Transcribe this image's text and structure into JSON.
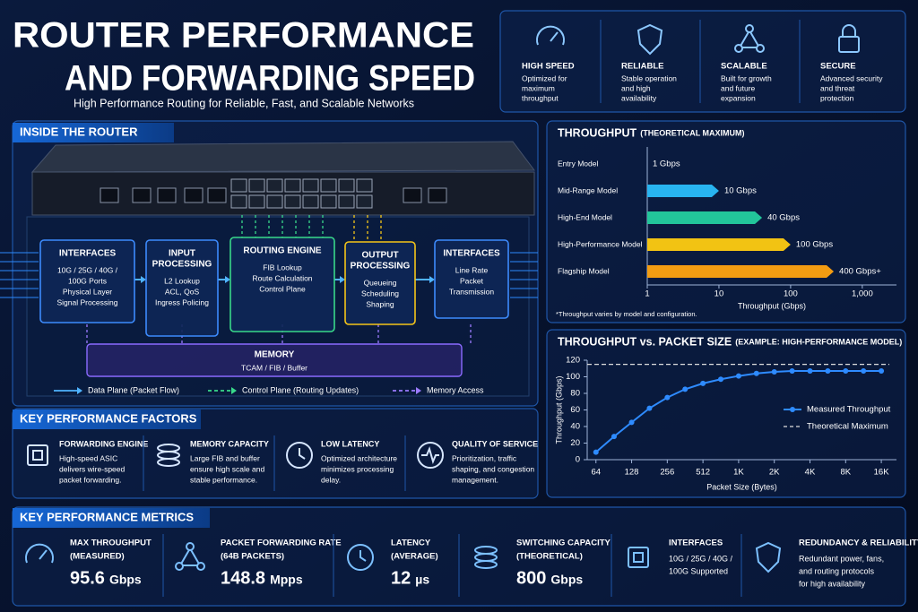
{
  "header": {
    "title_line1": "ROUTER PERFORMANCE",
    "title_line2": "AND FORWARDING SPEED",
    "subtitle": "High Performance Routing for Reliable, Fast, and Scalable Networks"
  },
  "features": [
    {
      "title": "HIGH SPEED",
      "lines": [
        "Optimized for",
        "maximum",
        "throughput"
      ]
    },
    {
      "title": "RELIABLE",
      "lines": [
        "Stable operation",
        "and high",
        "availability"
      ]
    },
    {
      "title": "SCALABLE",
      "lines": [
        "Built for growth",
        "and future",
        "expansion"
      ]
    },
    {
      "title": "SECURE",
      "lines": [
        "Advanced security",
        "and threat",
        "protection"
      ]
    }
  ],
  "router": {
    "title": "INSIDE THE ROUTER",
    "blocks": [
      {
        "title": [
          "INTERFACES"
        ],
        "lines": [
          "10G / 25G / 40G /",
          "100G Ports",
          "Physical Layer",
          "Signal Processing"
        ]
      },
      {
        "title": [
          "INPUT",
          "PROCESSING"
        ],
        "lines": [
          "L2 Lookup",
          "ACL, QoS",
          "Ingress Policing"
        ]
      },
      {
        "title": [
          "ROUTING ENGINE"
        ],
        "lines": [
          "FIB Lookup",
          "Route Calculation",
          "Control Plane"
        ]
      },
      {
        "title": [
          "OUTPUT",
          "PROCESSING"
        ],
        "lines": [
          "Queueing",
          "Scheduling",
          "Shaping"
        ]
      },
      {
        "title": [
          "INTERFACES"
        ],
        "lines": [
          "Line Rate",
          "Packet",
          "Transmission"
        ]
      }
    ],
    "memory": {
      "title": "MEMORY",
      "text": "TCAM / FIB / Buffer"
    },
    "legend": [
      "Data Plane (Packet Flow)",
      "Control Plane (Routing Updates)",
      "Memory Access"
    ]
  },
  "factors": {
    "title": "KEY PERFORMANCE FACTORS",
    "items": [
      {
        "title": "FORWARDING ENGINE",
        "lines": [
          "High-speed ASIC",
          "delivers wire-speed",
          "packet forwarding."
        ]
      },
      {
        "title": "MEMORY CAPACITY",
        "lines": [
          "Large FIB and buffer",
          "ensure high scale and",
          "stable performance."
        ]
      },
      {
        "title": "LOW LATENCY",
        "lines": [
          "Optimized architecture",
          "minimizes processing",
          "delay."
        ]
      },
      {
        "title": "QUALITY OF SERVICE",
        "lines": [
          "Prioritization, traffic",
          "shaping, and congestion",
          "management."
        ]
      }
    ]
  },
  "metrics": {
    "title": "KEY PERFORMANCE METRICS",
    "items": [
      {
        "label": "MAX THROUGHPUT",
        "sub": "(MEASURED)",
        "value": 95.6,
        "unit": "Gbps"
      },
      {
        "label": "PACKET FORWARDING RATE",
        "sub": "(64B PACKETS)",
        "value": 148.8,
        "unit": "Mpps"
      },
      {
        "label": "LATENCY",
        "sub": "(AVERAGE)",
        "value": 12,
        "unit": "µs"
      },
      {
        "label": "SWITCHING CAPACITY",
        "sub": "(THEORETICAL)",
        "value": 800,
        "unit": "Gbps"
      },
      {
        "label": "INTERFACES",
        "lines": [
          "10G / 25G / 40G /",
          "100G Supported"
        ]
      },
      {
        "label": "REDUNDANCY & RELIABILITY",
        "lines": [
          "Redundant power, fans,",
          "and routing protocols",
          "for high availability"
        ]
      }
    ]
  },
  "chart_data": [
    {
      "type": "bar",
      "orientation": "horizontal",
      "title": "THROUGHPUT",
      "subtitle": "(THEORETICAL MAXIMUM)",
      "categories": [
        "Entry Model",
        "Mid-Range Model",
        "High-End Model",
        "High-Performance Model",
        "Flagship Model"
      ],
      "values": [
        1,
        10,
        40,
        100,
        400
      ],
      "value_labels": [
        "1 Gbps",
        "10 Gbps",
        "40 Gbps",
        "100 Gbps",
        "400 Gbps+"
      ],
      "colors": [
        "#1e7fe0",
        "#28b4f0",
        "#22c59a",
        "#f2c313",
        "#f39c12"
      ],
      "xscale": "log",
      "xlim": [
        1,
        3000
      ],
      "xticks": [
        1,
        10,
        100,
        {
          "value": 1000,
          "label": "1,000"
        }
      ],
      "xlabel": "Throughput (Gbps)",
      "note": "*Throughput varies by model and configuration.",
      "grid": false
    },
    {
      "type": "line",
      "title": "THROUGHPUT vs. PACKET SIZE",
      "subtitle": "(EXAMPLE: HIGH-PERFORMANCE MODEL)",
      "x": [
        64,
        91,
        128,
        181,
        256,
        362,
        512,
        724,
        1024,
        1448,
        2048,
        2896,
        4096,
        5793,
        8192,
        11585,
        16384
      ],
      "series": [
        {
          "name": "Measured Throughput",
          "color": "#2e8bff",
          "values": [
            9,
            28,
            45,
            62,
            75,
            85,
            92,
            97,
            101,
            104,
            106,
            107,
            107,
            107,
            107,
            107,
            107
          ]
        }
      ],
      "hline": {
        "name": "Theoretical Maximum",
        "value": 115,
        "color": "#dddddd"
      },
      "xscale": "log",
      "xlim": [
        54,
        22000
      ],
      "xticks": [
        64,
        128,
        256,
        512,
        {
          "value": 1024,
          "label": "1K"
        },
        {
          "value": 2048,
          "label": "2K"
        },
        {
          "value": 4096,
          "label": "4K"
        },
        {
          "value": 8192,
          "label": "8K"
        },
        {
          "value": 16384,
          "label": "16K"
        }
      ],
      "ylim": [
        0,
        120
      ],
      "yticks": [
        0,
        20,
        40,
        60,
        80,
        100,
        120
      ],
      "xlabel": "Packet Size (Bytes)",
      "ylabel": "Throughput (Gbps)",
      "legend": "right",
      "grid": false
    }
  ]
}
